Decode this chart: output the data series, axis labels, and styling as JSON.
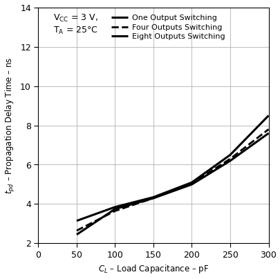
{
  "xlim": [
    0,
    300
  ],
  "ylim": [
    2,
    14
  ],
  "xticks": [
    0,
    50,
    100,
    150,
    200,
    250,
    300
  ],
  "yticks": [
    2,
    4,
    6,
    8,
    10,
    12,
    14
  ],
  "curves": [
    {
      "label": "One Output Switching",
      "linestyle": "solid",
      "linewidth": 2.2,
      "x": [
        50,
        100,
        150,
        200,
        250,
        300
      ],
      "y": [
        3.15,
        3.85,
        4.35,
        5.1,
        6.5,
        8.5
      ]
    },
    {
      "label": "Four Outputs Switching",
      "linestyle": "dashed",
      "linewidth": 2.0,
      "x": [
        50,
        100,
        150,
        200,
        250,
        300
      ],
      "y": [
        2.65,
        3.65,
        4.3,
        5.05,
        6.3,
        7.8
      ]
    },
    {
      "label": "Eight Outputs Switching",
      "linestyle": "solid",
      "linewidth": 2.2,
      "x": [
        50,
        100,
        150,
        200,
        250,
        300
      ],
      "y": [
        2.45,
        3.75,
        4.3,
        5.0,
        6.2,
        7.6
      ]
    }
  ],
  "color": "#000000",
  "bg_color": "#ffffff",
  "grid_color": "#b0b0b0"
}
